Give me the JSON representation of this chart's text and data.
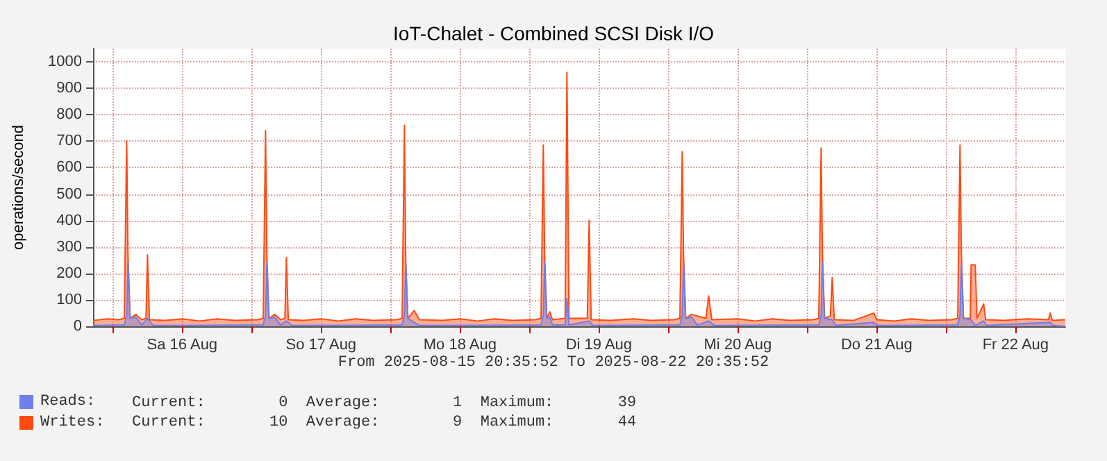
{
  "chart_data": {
    "type": "area",
    "title": "IoT-Chalet - Combined SCSI Disk I/O",
    "ylabel": "operations/second",
    "annotations": [
      "From 2025-08-15 20:35:52 To 2025-08-22 20:35:52",
      "Current:        0  Average:        1  Maximum:       39",
      "Current:       10  Average:        9  Maximum:       44"
    ],
    "xlim": [
      "2025-08-15T20:35:52",
      "2025-08-22T20:35:52"
    ],
    "xticks": [
      {
        "value": "2025-08-16T00:00",
        "label": null
      },
      {
        "value": "2025-08-16T12:00",
        "label": "Sa 16 Aug"
      },
      {
        "value": "2025-08-17T00:00",
        "label": null
      },
      {
        "value": "2025-08-17T12:00",
        "label": "So 17 Aug"
      },
      {
        "value": "2025-08-18T00:00",
        "label": null
      },
      {
        "value": "2025-08-18T12:00",
        "label": "Mo 18 Aug"
      },
      {
        "value": "2025-08-19T00:00",
        "label": null
      },
      {
        "value": "2025-08-19T12:00",
        "label": "Di 19 Aug"
      },
      {
        "value": "2025-08-20T00:00",
        "label": null
      },
      {
        "value": "2025-08-20T12:00",
        "label": "Mi 20 Aug"
      },
      {
        "value": "2025-08-21T00:00",
        "label": null
      },
      {
        "value": "2025-08-21T12:00",
        "label": "Do 21 Aug"
      },
      {
        "value": "2025-08-22T00:00",
        "label": null
      },
      {
        "value": "2025-08-22T12:00",
        "label": "Fr 22 Aug"
      }
    ],
    "ylim": [
      0,
      1050
    ],
    "yticks": [
      0,
      100,
      200,
      300,
      400,
      500,
      600,
      700,
      800,
      900,
      1000
    ],
    "grid": true,
    "legend": "bottom left",
    "marker": "none",
    "series": [
      {
        "name": "Writes:",
        "color": "#ff4a10",
        "x": [
          "2025-08-15T20:36",
          "2025-08-15T23:00",
          "2025-08-16T01:00",
          "2025-08-16T02:00",
          "2025-08-16T02:24",
          "2025-08-16T02:38",
          "2025-08-16T03:00",
          "2025-08-16T04:00",
          "2025-08-16T05:00",
          "2025-08-16T05:45",
          "2025-08-16T06:00",
          "2025-08-16T06:20",
          "2025-08-16T09:00",
          "2025-08-16T12:00",
          "2025-08-16T15:00",
          "2025-08-16T18:00",
          "2025-08-16T21:00",
          "2025-08-17T01:00",
          "2025-08-17T02:00",
          "2025-08-17T02:24",
          "2025-08-17T02:38",
          "2025-08-17T03:00",
          "2025-08-17T04:00",
          "2025-08-17T05:00",
          "2025-08-17T05:45",
          "2025-08-17T06:00",
          "2025-08-17T06:20",
          "2025-08-17T09:00",
          "2025-08-17T12:00",
          "2025-08-17T15:00",
          "2025-08-17T18:00",
          "2025-08-17T21:00",
          "2025-08-18T01:00",
          "2025-08-18T02:00",
          "2025-08-18T02:24",
          "2025-08-18T02:38",
          "2025-08-18T03:00",
          "2025-08-18T04:05",
          "2025-08-18T05:00",
          "2025-08-18T09:00",
          "2025-08-18T12:00",
          "2025-08-18T15:00",
          "2025-08-18T18:00",
          "2025-08-18T21:00",
          "2025-08-19T01:00",
          "2025-08-19T02:00",
          "2025-08-19T02:24",
          "2025-08-19T02:38",
          "2025-08-19T03:00",
          "2025-08-19T03:30",
          "2025-08-19T04:00",
          "2025-08-19T06:10",
          "2025-08-19T06:29",
          "2025-08-19T06:50",
          "2025-08-19T10:00",
          "2025-08-19T10:19",
          "2025-08-19T10:40",
          "2025-08-19T14:00",
          "2025-08-19T18:00",
          "2025-08-19T21:00",
          "2025-08-20T01:00",
          "2025-08-20T02:00",
          "2025-08-20T02:24",
          "2025-08-20T02:38",
          "2025-08-20T03:00",
          "2025-08-20T04:00",
          "2025-08-20T06:30",
          "2025-08-20T06:58",
          "2025-08-20T07:30",
          "2025-08-20T12:00",
          "2025-08-20T15:00",
          "2025-08-20T18:00",
          "2025-08-20T21:00",
          "2025-08-21T01:00",
          "2025-08-21T02:00",
          "2025-08-21T02:24",
          "2025-08-21T02:38",
          "2025-08-21T03:00",
          "2025-08-21T04:00",
          "2025-08-21T04:19",
          "2025-08-21T04:40",
          "2025-08-21T08:00",
          "2025-08-21T11:31",
          "2025-08-21T12:00",
          "2025-08-21T15:00",
          "2025-08-21T18:00",
          "2025-08-21T21:00",
          "2025-08-22T01:00",
          "2025-08-22T02:00",
          "2025-08-22T02:24",
          "2025-08-22T02:38",
          "2025-08-22T03:00",
          "2025-08-22T04:10",
          "2025-08-22T04:19",
          "2025-08-22T05:02",
          "2025-08-22T05:20",
          "2025-08-22T06:29",
          "2025-08-22T06:50",
          "2025-08-22T10:00",
          "2025-08-22T14:00",
          "2025-08-22T17:40",
          "2025-08-22T18:00",
          "2025-08-22T18:20",
          "2025-08-22T20:35"
        ],
        "values": [
          22,
          28,
          25,
          30,
          700,
          270,
          30,
          45,
          25,
          30,
          270,
          25,
          22,
          28,
          20,
          28,
          22,
          25,
          30,
          740,
          260,
          30,
          45,
          25,
          30,
          260,
          25,
          22,
          28,
          20,
          28,
          22,
          25,
          30,
          760,
          240,
          30,
          60,
          25,
          22,
          28,
          20,
          28,
          22,
          25,
          30,
          685,
          260,
          30,
          55,
          25,
          30,
          960,
          30,
          30,
          400,
          25,
          22,
          28,
          22,
          25,
          30,
          660,
          270,
          30,
          45,
          30,
          115,
          25,
          28,
          20,
          28,
          22,
          25,
          30,
          674,
          268,
          30,
          40,
          184,
          25,
          22,
          50,
          25,
          20,
          28,
          22,
          25,
          30,
          685,
          279,
          30,
          30,
          232,
          232,
          30,
          84,
          25,
          22,
          28,
          25,
          50,
          22,
          25
        ]
      },
      {
        "name": "Reads:",
        "color": "#6d7fe8",
        "x": [
          "2025-08-15T20:36",
          "2025-08-16T02:00",
          "2025-08-16T02:24",
          "2025-08-16T02:38",
          "2025-08-16T03:00",
          "2025-08-16T04:00",
          "2025-08-16T05:00",
          "2025-08-16T06:00",
          "2025-08-16T07:00",
          "2025-08-17T02:00",
          "2025-08-17T02:24",
          "2025-08-17T02:38",
          "2025-08-17T03:00",
          "2025-08-17T04:00",
          "2025-08-17T05:00",
          "2025-08-17T06:00",
          "2025-08-17T07:00",
          "2025-08-18T02:00",
          "2025-08-18T02:24",
          "2025-08-18T02:38",
          "2025-08-18T03:00",
          "2025-08-18T04:05",
          "2025-08-18T05:00",
          "2025-08-19T02:00",
          "2025-08-19T02:24",
          "2025-08-19T02:38",
          "2025-08-19T03:00",
          "2025-08-19T03:30",
          "2025-08-19T04:00",
          "2025-08-19T06:10",
          "2025-08-19T06:29",
          "2025-08-19T06:50",
          "2025-08-19T10:19",
          "2025-08-19T11:00",
          "2025-08-20T02:00",
          "2025-08-20T02:24",
          "2025-08-20T02:38",
          "2025-08-20T03:00",
          "2025-08-20T04:00",
          "2025-08-20T05:00",
          "2025-08-20T06:58",
          "2025-08-20T08:00",
          "2025-08-21T02:00",
          "2025-08-21T02:24",
          "2025-08-21T02:38",
          "2025-08-21T03:00",
          "2025-08-21T04:19",
          "2025-08-21T05:00",
          "2025-08-21T11:31",
          "2025-08-21T12:00",
          "2025-08-22T02:00",
          "2025-08-22T02:24",
          "2025-08-22T02:38",
          "2025-08-22T03:00",
          "2025-08-22T04:19",
          "2025-08-22T05:00",
          "2025-08-22T06:29",
          "2025-08-22T07:00",
          "2025-08-22T18:00",
          "2025-08-22T18:30",
          "2025-08-22T20:35"
        ],
        "values": [
          3,
          5,
          40,
          240,
          30,
          35,
          5,
          30,
          3,
          5,
          40,
          240,
          30,
          35,
          5,
          20,
          3,
          5,
          40,
          240,
          30,
          15,
          3,
          5,
          40,
          240,
          30,
          35,
          5,
          5,
          105,
          5,
          20,
          3,
          5,
          40,
          240,
          30,
          35,
          5,
          20,
          3,
          5,
          40,
          240,
          30,
          25,
          3,
          15,
          3,
          5,
          40,
          240,
          30,
          25,
          3,
          20,
          3,
          15,
          3,
          0
        ]
      }
    ]
  }
}
